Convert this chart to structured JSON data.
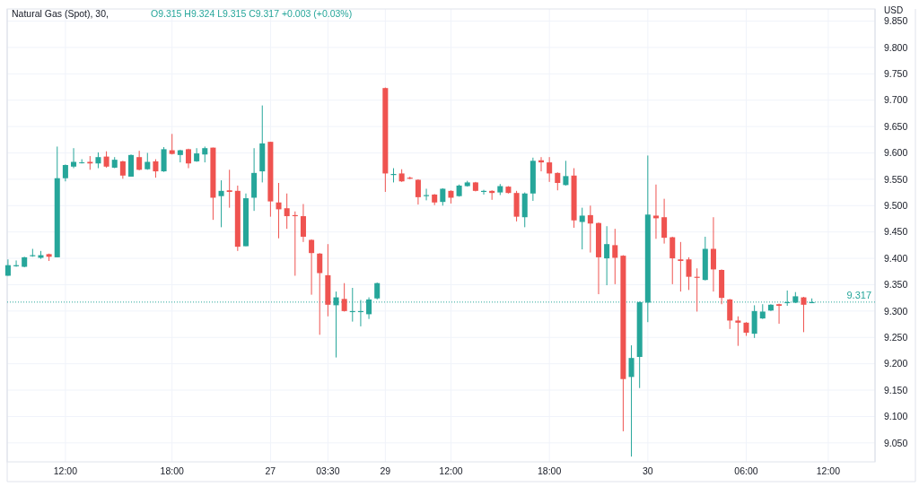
{
  "chart_data": {
    "type": "candlestick",
    "title": "Natural Gas (Spot), 30,",
    "annotations": [
      "O9.315 H9.324 L9.315 C9.317 +0.003 (+0.03%)"
    ],
    "ylabel": "USD",
    "categories": [
      null,
      null,
      null,
      null,
      null,
      null,
      null,
      "12:00",
      null,
      null,
      null,
      null,
      null,
      null,
      null,
      null,
      null,
      null,
      null,
      null,
      "18:00",
      null,
      null,
      null,
      null,
      null,
      null,
      null,
      null,
      null,
      null,
      null,
      "27",
      null,
      null,
      null,
      null,
      null,
      null,
      "03:30",
      null,
      null,
      null,
      null,
      null,
      null,
      "29",
      null,
      null,
      null,
      null,
      null,
      null,
      null,
      "12:00",
      null,
      null,
      null,
      null,
      null,
      null,
      null,
      null,
      null,
      null,
      null,
      "18:00",
      null,
      null,
      null,
      null,
      null,
      null,
      null,
      null,
      null,
      null,
      null,
      "30",
      null,
      null,
      null,
      null,
      null,
      null,
      null,
      null,
      null,
      null,
      null,
      "06:00",
      null,
      null,
      null,
      null,
      null,
      null,
      null,
      null,
      null,
      "12:00",
      null,
      null,
      null,
      null,
      null
    ],
    "ohlc": [
      [
        9.367,
        9.398,
        9.367,
        9.387
      ],
      [
        9.385,
        9.396,
        9.384,
        9.387
      ],
      [
        9.384,
        9.403,
        9.383,
        9.402
      ],
      [
        9.404,
        9.418,
        9.403,
        9.406
      ],
      [
        9.401,
        9.414,
        9.399,
        9.406
      ],
      [
        9.408,
        9.409,
        9.395,
        9.403
      ],
      [
        9.402,
        9.612,
        9.402,
        9.552
      ],
      [
        9.552,
        9.578,
        9.546,
        9.577
      ],
      [
        9.574,
        9.609,
        9.571,
        9.583
      ],
      [
        9.581,
        9.588,
        9.58,
        9.582
      ],
      [
        9.583,
        9.594,
        9.568,
        9.58
      ],
      [
        9.58,
        9.601,
        9.571,
        9.592
      ],
      [
        9.593,
        9.603,
        9.572,
        9.574
      ],
      [
        9.572,
        9.592,
        9.571,
        9.587
      ],
      [
        9.584,
        9.585,
        9.551,
        9.557
      ],
      [
        9.555,
        9.597,
        9.555,
        9.596
      ],
      [
        9.592,
        9.604,
        9.567,
        9.568
      ],
      [
        9.569,
        9.6,
        9.568,
        9.583
      ],
      [
        9.584,
        9.588,
        9.553,
        9.565
      ],
      [
        9.565,
        9.611,
        9.564,
        9.607
      ],
      [
        9.605,
        9.636,
        9.597,
        9.598
      ],
      [
        9.596,
        9.606,
        9.582,
        9.605
      ],
      [
        9.607,
        9.608,
        9.571,
        9.58
      ],
      [
        9.584,
        9.609,
        9.583,
        9.599
      ],
      [
        9.597,
        9.612,
        9.582,
        9.609
      ],
      [
        9.61,
        9.61,
        9.473,
        9.515
      ],
      [
        9.518,
        9.548,
        9.459,
        9.528
      ],
      [
        9.529,
        9.568,
        9.496,
        9.526
      ],
      [
        9.528,
        9.538,
        9.414,
        9.422
      ],
      [
        9.423,
        9.523,
        9.423,
        9.514
      ],
      [
        9.515,
        9.609,
        9.49,
        9.562
      ],
      [
        9.565,
        9.69,
        9.544,
        9.618
      ],
      [
        9.621,
        9.621,
        9.479,
        9.508
      ],
      [
        9.506,
        9.543,
        9.438,
        9.493
      ],
      [
        9.495,
        9.523,
        9.456,
        9.48
      ],
      [
        9.482,
        9.489,
        9.367,
        9.48
      ],
      [
        9.48,
        9.503,
        9.431,
        9.441
      ],
      [
        9.435,
        9.436,
        9.331,
        9.41
      ],
      [
        9.409,
        9.41,
        9.255,
        9.372
      ],
      [
        9.368,
        9.427,
        9.29,
        9.312
      ],
      [
        9.311,
        9.337,
        9.212,
        9.326
      ],
      [
        9.323,
        9.353,
        9.299,
        9.3
      ],
      [
        9.298,
        9.344,
        9.28,
        9.3
      ],
      [
        9.298,
        9.321,
        9.271,
        9.3
      ],
      [
        9.294,
        9.326,
        9.285,
        9.322
      ],
      [
        9.324,
        9.354,
        9.322,
        9.353
      ],
      [
        9.723,
        9.724,
        9.526,
        9.561
      ],
      [
        9.558,
        9.571,
        9.544,
        9.56
      ],
      [
        9.561,
        9.569,
        9.545,
        9.546
      ],
      [
        9.553,
        9.555,
        9.55,
        9.551
      ],
      [
        9.549,
        9.55,
        9.502,
        9.516
      ],
      [
        9.518,
        9.532,
        9.51,
        9.52
      ],
      [
        9.521,
        9.522,
        9.501,
        9.506
      ],
      [
        9.507,
        9.533,
        9.5,
        9.532
      ],
      [
        9.528,
        9.529,
        9.504,
        9.515
      ],
      [
        9.518,
        9.54,
        9.517,
        9.538
      ],
      [
        9.537,
        9.547,
        9.536,
        9.544
      ],
      [
        9.544,
        9.545,
        9.527,
        9.528
      ],
      [
        9.526,
        9.53,
        9.521,
        9.528
      ],
      [
        9.528,
        9.529,
        9.511,
        9.524
      ],
      [
        9.525,
        9.541,
        9.52,
        9.537
      ],
      [
        9.536,
        9.537,
        9.523,
        9.524
      ],
      [
        9.524,
        9.528,
        9.47,
        9.479
      ],
      [
        9.478,
        9.525,
        9.459,
        9.523
      ],
      [
        9.523,
        9.591,
        9.509,
        9.585
      ],
      [
        9.586,
        9.592,
        9.565,
        9.582
      ],
      [
        9.582,
        9.592,
        9.545,
        9.561
      ],
      [
        9.562,
        9.563,
        9.529,
        9.543
      ],
      [
        9.539,
        9.585,
        9.538,
        9.556
      ],
      [
        9.557,
        9.571,
        9.458,
        9.472
      ],
      [
        9.469,
        9.496,
        9.417,
        9.481
      ],
      [
        9.482,
        9.5,
        9.411,
        9.466
      ],
      [
        9.467,
        9.468,
        9.332,
        9.402
      ],
      [
        9.4,
        9.461,
        9.349,
        9.427
      ],
      [
        9.425,
        9.456,
        9.351,
        9.401
      ],
      [
        9.405,
        9.406,
        9.072,
        9.171
      ],
      [
        9.175,
        9.235,
        9.024,
        9.211
      ],
      [
        9.213,
        9.318,
        9.154,
        9.317
      ],
      [
        9.316,
        9.595,
        9.279,
        9.483
      ],
      [
        9.481,
        9.54,
        9.437,
        9.476
      ],
      [
        9.478,
        9.513,
        9.428,
        9.439
      ],
      [
        9.44,
        9.441,
        9.351,
        9.4
      ],
      [
        9.398,
        9.431,
        9.337,
        9.395
      ],
      [
        9.398,
        9.402,
        9.34,
        9.365
      ],
      [
        9.365,
        9.381,
        9.299,
        9.363
      ],
      [
        9.359,
        9.441,
        9.358,
        9.418
      ],
      [
        9.418,
        9.478,
        9.337,
        9.379
      ],
      [
        9.378,
        9.379,
        9.313,
        9.325
      ],
      [
        9.322,
        9.323,
        9.266,
        9.282
      ],
      [
        9.282,
        9.29,
        9.234,
        9.278
      ],
      [
        9.278,
        9.279,
        9.253,
        9.259
      ],
      [
        9.257,
        9.311,
        9.249,
        9.3
      ],
      [
        9.286,
        9.313,
        9.285,
        9.299
      ],
      [
        9.301,
        9.313,
        9.3,
        9.312
      ],
      [
        9.313,
        9.314,
        9.276,
        9.31
      ],
      [
        9.315,
        9.339,
        9.31,
        9.317
      ],
      [
        9.316,
        9.336,
        9.315,
        9.328
      ],
      [
        9.326,
        9.327,
        9.26,
        9.312
      ],
      [
        9.315,
        9.324,
        9.315,
        9.317
      ],
      null,
      null,
      null,
      null,
      null,
      null,
      null
    ],
    "colors": [
      "#26a69a",
      "#26a69a",
      "#26a69a",
      "#26a69a",
      "#26a69a",
      "#ef5350",
      "#26a69a",
      "#26a69a",
      "#26a69a",
      "#26a69a",
      "#ef5350",
      "#26a69a",
      "#ef5350",
      "#26a69a",
      "#ef5350",
      "#26a69a",
      "#ef5350",
      "#26a69a",
      "#ef5350",
      "#26a69a",
      "#ef5350",
      "#26a69a",
      "#ef5350",
      "#26a69a",
      "#26a69a",
      "#ef5350",
      "#26a69a",
      "#ef5350",
      "#ef5350",
      "#26a69a",
      "#26a69a",
      "#26a69a",
      "#ef5350",
      "#ef5350",
      "#ef5350",
      "#ef5350",
      "#ef5350",
      "#ef5350",
      "#ef5350",
      "#ef5350",
      "#26a69a",
      "#ef5350",
      "#26a69a",
      "#26a69a",
      "#26a69a",
      "#26a69a",
      "#ef5350",
      "#26a69a",
      "#ef5350",
      "#ef5350",
      "#ef5350",
      "#26a69a",
      "#ef5350",
      "#26a69a",
      "#ef5350",
      "#26a69a",
      "#26a69a",
      "#ef5350",
      "#26a69a",
      "#ef5350",
      "#26a69a",
      "#ef5350",
      "#ef5350",
      "#26a69a",
      "#26a69a",
      "#ef5350",
      "#ef5350",
      "#ef5350",
      "#26a69a",
      "#ef5350",
      "#26a69a",
      "#ef5350",
      "#ef5350",
      "#26a69a",
      "#ef5350",
      "#ef5350",
      "#26a69a",
      "#26a69a",
      "#26a69a",
      "#ef5350",
      "#ef5350",
      "#ef5350",
      "#ef5350",
      "#ef5350",
      "#ef5350",
      "#26a69a",
      "#ef5350",
      "#ef5350",
      "#ef5350",
      "#ef5350",
      "#ef5350",
      "#26a69a",
      "#26a69a",
      "#26a69a",
      "#ef5350",
      "#26a69a",
      "#26a69a",
      "#ef5350",
      "#26a69a",
      null,
      null,
      null,
      null,
      null,
      null,
      null
    ],
    "ylim": [
      9.014,
      9.873
    ],
    "yticks": [
      {
        "value": 9.05,
        "label": "9.050"
      },
      {
        "value": 9.1,
        "label": "9.100"
      },
      {
        "value": 9.15,
        "label": "9.150"
      },
      {
        "value": 9.2,
        "label": "9.200"
      },
      {
        "value": 9.25,
        "label": "9.250"
      },
      {
        "value": 9.3,
        "label": "9.300"
      },
      {
        "value": 9.35,
        "label": "9.350"
      },
      {
        "value": 9.4,
        "label": "9.400"
      },
      {
        "value": 9.45,
        "label": "9.450"
      },
      {
        "value": 9.5,
        "label": "9.500"
      },
      {
        "value": 9.55,
        "label": "9.550"
      },
      {
        "value": 9.6,
        "label": "9.600"
      },
      {
        "value": 9.65,
        "label": "9.650"
      },
      {
        "value": 9.7,
        "label": "9.700"
      },
      {
        "value": 9.75,
        "label": "9.750"
      },
      {
        "value": 9.8,
        "label": "9.800"
      },
      {
        "value": 9.85,
        "label": "9.850"
      }
    ],
    "grid": true,
    "ref_lines": [
      {
        "axis": "y",
        "value": 9.317,
        "label": "9.317",
        "color": "#26a69a",
        "line_style": "dotted"
      }
    ]
  }
}
